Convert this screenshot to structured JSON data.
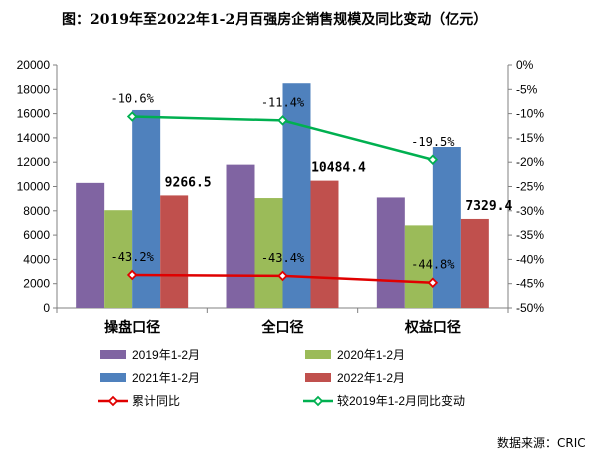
{
  "title": "图：2019年至2022年1-2月百强房企销售规模及同比变动（亿元）",
  "source": "数据来源：CRIC",
  "chart_data": {
    "type": "bar",
    "categories": [
      "操盘口径",
      "全口径",
      "权益口径"
    ],
    "series": [
      {
        "name": "2019年1-2月",
        "type": "bar",
        "axis": "left",
        "color": "#8064a2",
        "values": [
          10300,
          11800,
          9100
        ]
      },
      {
        "name": "2020年1-2月",
        "type": "bar",
        "axis": "left",
        "color": "#9bbb59",
        "values": [
          8050,
          9050,
          6800
        ]
      },
      {
        "name": "2021年1-2月",
        "type": "bar",
        "axis": "left",
        "color": "#4f81bd",
        "values": [
          16300,
          18500,
          13250
        ]
      },
      {
        "name": "2022年1-2月",
        "type": "bar",
        "axis": "left",
        "color": "#c0504d",
        "values": [
          9266.5,
          10484.4,
          7329.4
        ],
        "labels": [
          "9266.5",
          "10484.4",
          "7329.4"
        ]
      },
      {
        "name": "累计同比",
        "type": "line",
        "axis": "right",
        "color": "#e00000",
        "values": [
          -43.2,
          -43.4,
          -44.8
        ],
        "labels": [
          "-43.2%",
          "-43.4%",
          "-44.8%"
        ]
      },
      {
        "name": "较2019年1-2月同比变动",
        "type": "line",
        "axis": "right",
        "color": "#00b050",
        "values": [
          -10.6,
          -11.4,
          -19.5
        ],
        "labels": [
          "-10.6%",
          "-11.4%",
          "-19.5%"
        ]
      }
    ],
    "y_left": {
      "min": 0,
      "max": 20000,
      "step": 2000,
      "ticks": [
        "0",
        "2000",
        "4000",
        "6000",
        "8000",
        "10000",
        "12000",
        "14000",
        "16000",
        "18000",
        "20000"
      ]
    },
    "y_right": {
      "min": -50,
      "max": 0,
      "step": 5,
      "ticks": [
        "-50%",
        "-45%",
        "-40%",
        "-35%",
        "-30%",
        "-25%",
        "-20%",
        "-15%",
        "-10%",
        "-5%",
        "0%"
      ]
    },
    "grid": false,
    "legend_position": "bottom"
  }
}
